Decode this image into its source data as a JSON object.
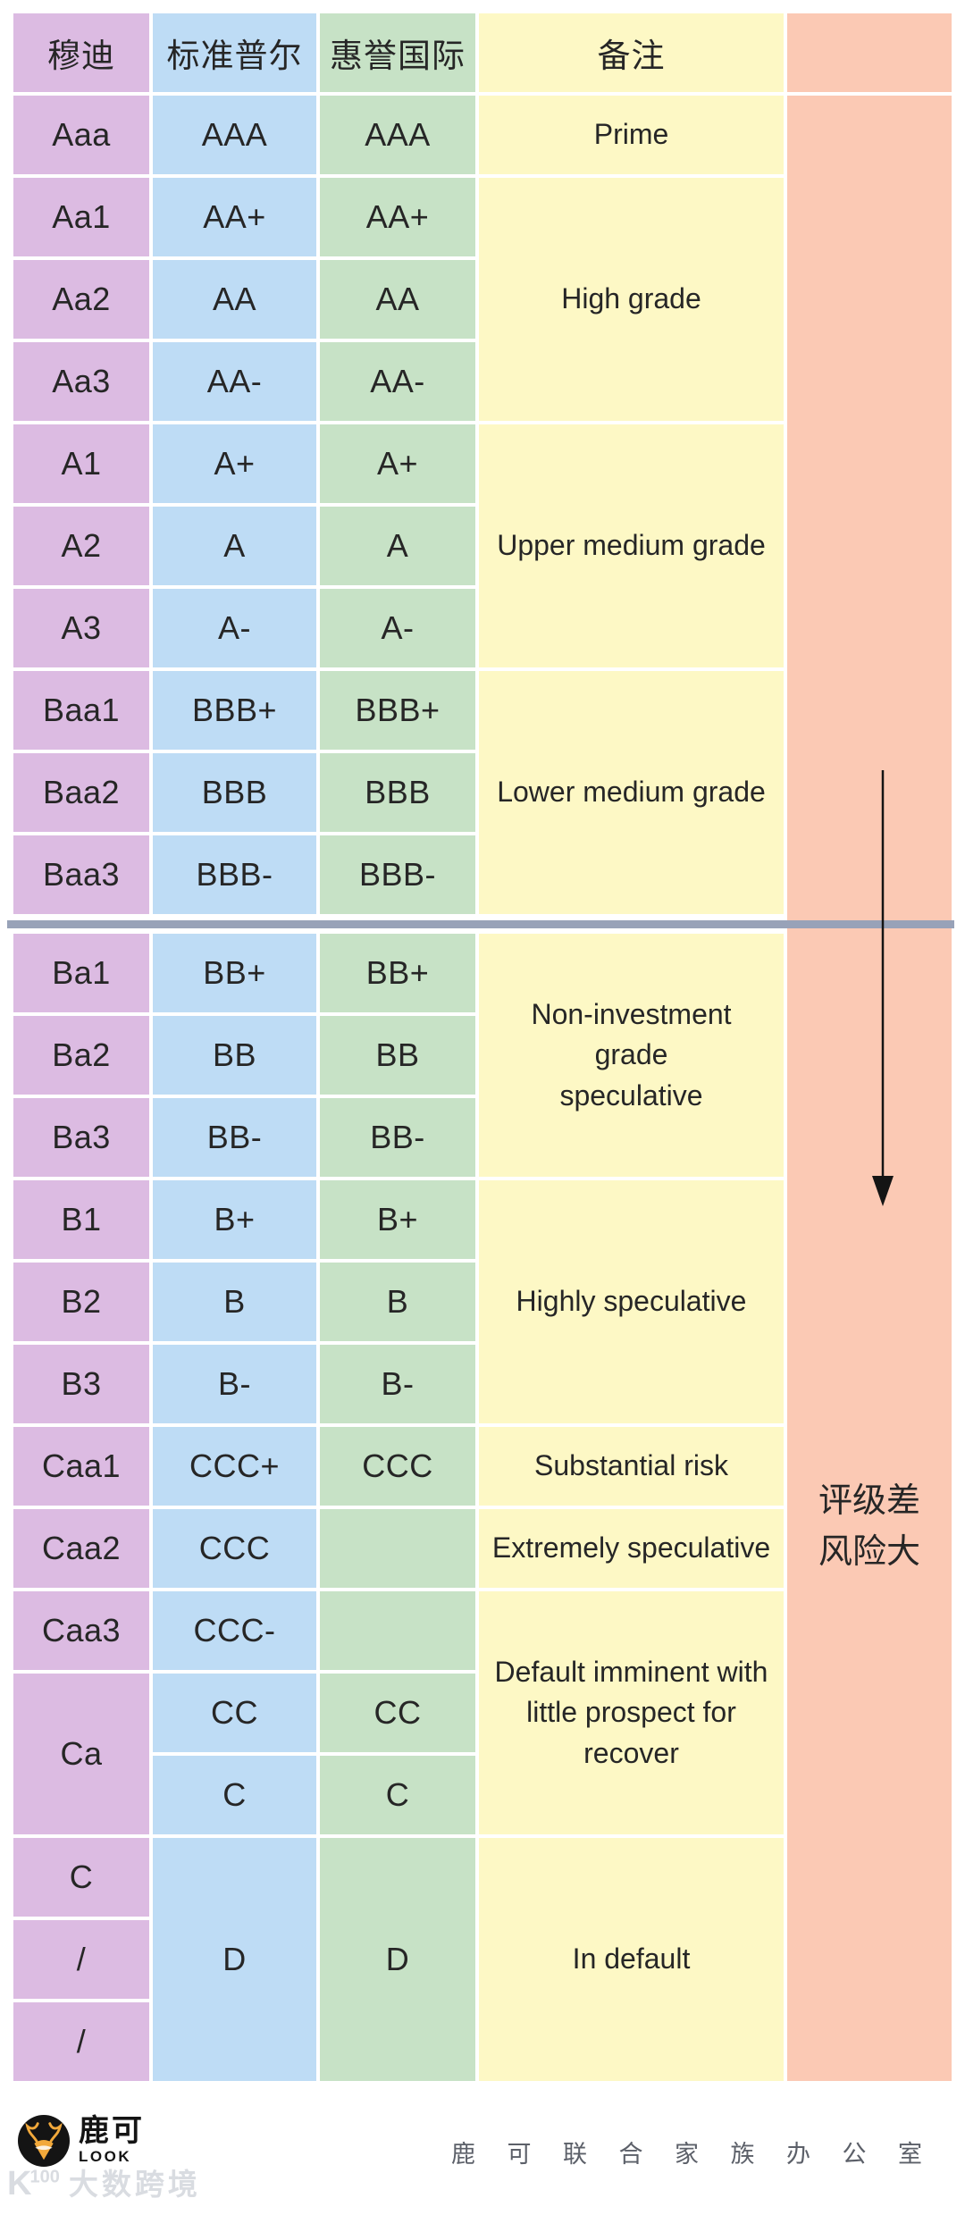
{
  "colors": {
    "moody_purple": "#dcbbe2",
    "sp_blue": "#bedcf5",
    "fitch_green": "#c7e2c6",
    "remark_yellow": "#fdf8c5",
    "risk_pink": "#fbc9b4",
    "divider_gray": "#98a2b8",
    "text_dark": "#262626",
    "footer_gray": "#5c6069",
    "watermark_gray": "#d9dce1",
    "brand_black": "#141414",
    "brand_gold": "#f2a93b"
  },
  "table": {
    "columns": [
      {
        "key": "moody",
        "header": "穆迪",
        "color": "#dcbbe2",
        "cells": [
          {
            "t": "Aaa"
          },
          {
            "t": "Aa1"
          },
          {
            "t": "Aa2"
          },
          {
            "t": "Aa3"
          },
          {
            "t": "A1"
          },
          {
            "t": "A2"
          },
          {
            "t": "A3"
          },
          {
            "t": "Baa1"
          },
          {
            "t": "Baa2"
          },
          {
            "t": "Baa3"
          },
          {
            "t": "Ba1"
          },
          {
            "t": "Ba2"
          },
          {
            "t": "Ba3"
          },
          {
            "t": "B1"
          },
          {
            "t": "B2"
          },
          {
            "t": "B3"
          },
          {
            "t": "Caa1"
          },
          {
            "t": "Caa2"
          },
          {
            "t": "Caa3"
          },
          {
            "t": "Ca",
            "span": 2
          },
          {
            "t": "C"
          },
          {
            "t": "/"
          },
          {
            "t": "/"
          }
        ]
      },
      {
        "key": "sp",
        "header": "标准普尔",
        "color": "#bedcf5",
        "cells": [
          {
            "t": "AAA"
          },
          {
            "t": "AA+"
          },
          {
            "t": "AA"
          },
          {
            "t": "AA-"
          },
          {
            "t": "A+"
          },
          {
            "t": "A"
          },
          {
            "t": "A-"
          },
          {
            "t": "BBB+"
          },
          {
            "t": "BBB"
          },
          {
            "t": "BBB-"
          },
          {
            "t": "BB+"
          },
          {
            "t": "BB"
          },
          {
            "t": "BB-"
          },
          {
            "t": "B+"
          },
          {
            "t": "B"
          },
          {
            "t": "B-"
          },
          {
            "t": "CCC+"
          },
          {
            "t": "CCC"
          },
          {
            "t": "CCC-"
          },
          {
            "t": "CC"
          },
          {
            "t": "C"
          },
          {
            "t": "D",
            "span": 3
          }
        ]
      },
      {
        "key": "fitch",
        "header": "惠誉国际",
        "color": "#c7e2c6",
        "cells": [
          {
            "t": "AAA"
          },
          {
            "t": "AA+"
          },
          {
            "t": "AA"
          },
          {
            "t": "AA-"
          },
          {
            "t": "A+"
          },
          {
            "t": "A"
          },
          {
            "t": "A-"
          },
          {
            "t": "BBB+"
          },
          {
            "t": "BBB"
          },
          {
            "t": "BBB-"
          },
          {
            "t": "BB+"
          },
          {
            "t": "BB"
          },
          {
            "t": "BB-"
          },
          {
            "t": "B+"
          },
          {
            "t": "B"
          },
          {
            "t": "B-"
          },
          {
            "t": "CCC"
          },
          {
            "t": ""
          },
          {
            "t": ""
          },
          {
            "t": "CC"
          },
          {
            "t": "C"
          },
          {
            "t": "D",
            "span": 3
          }
        ]
      },
      {
        "key": "remarks",
        "header": "备注",
        "color": "#fdf8c5",
        "cells": [
          {
            "lines": [
              "Prime"
            ],
            "span": 1
          },
          {
            "lines": [
              "High grade"
            ],
            "span": 3
          },
          {
            "lines": [
              "Upper medium grade"
            ],
            "span": 3
          },
          {
            "lines": [
              "Lower medium grade"
            ],
            "span": 3
          },
          {
            "lines": [
              "Non-investment",
              "grade",
              "speculative"
            ],
            "span": 3
          },
          {
            "lines": [
              "Highly speculative"
            ],
            "span": 3
          },
          {
            "lines": [
              "Substantial risk"
            ],
            "span": 1
          },
          {
            "lines": [
              "Extremely speculative"
            ],
            "span": 1
          },
          {
            "lines": [
              "Default imminent with",
              "little prospect for",
              "recover"
            ],
            "span": 3
          },
          {
            "lines": [
              "In default"
            ],
            "span": 3
          }
        ]
      },
      {
        "key": "risk",
        "header": "",
        "color": "#fbc9b4",
        "cells": []
      }
    ],
    "risk_note_lines": [
      "评级差",
      "风险大"
    ]
  },
  "footer": {
    "brand_cn": "鹿可",
    "brand_en": "LOOK",
    "right_text": "鹿 可 联 合 家 族 办 公 室",
    "watermark_mark": "K",
    "watermark_sup": "100",
    "watermark_text": "大数跨境"
  }
}
